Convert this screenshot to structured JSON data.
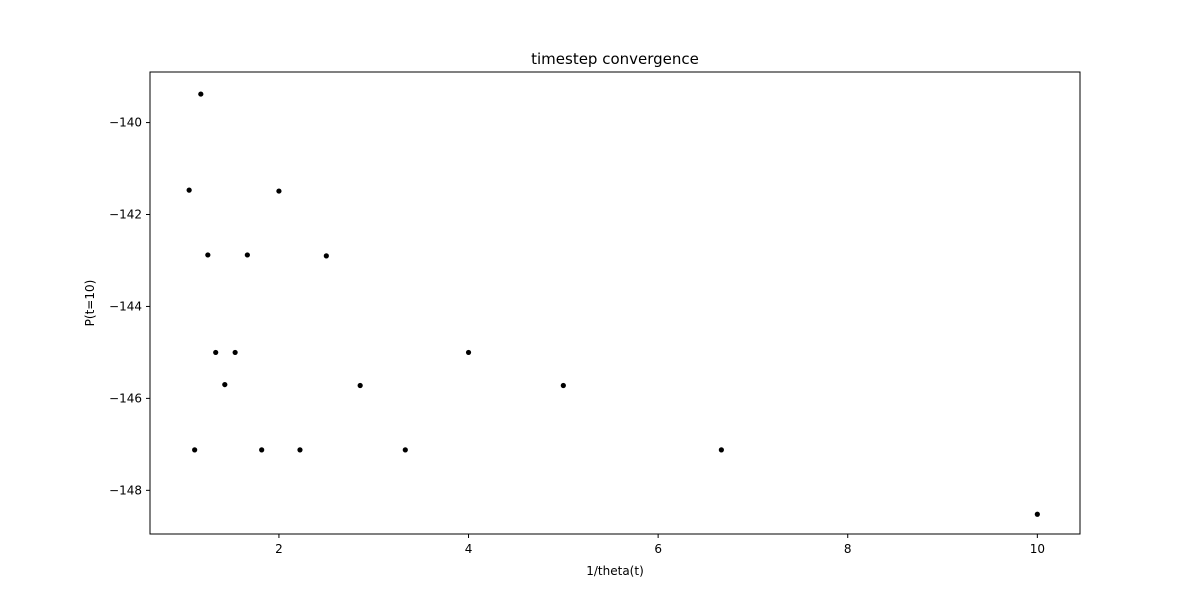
{
  "chart_data": {
    "type": "scatter",
    "title": "timestep convergence",
    "xlabel": "1/theta(t)",
    "ylabel": "P(t=10)",
    "xlim": [
      0.64,
      10.45
    ],
    "ylim": [
      -148.95,
      -138.9
    ],
    "xticks": [
      2,
      4,
      6,
      8,
      10
    ],
    "yticks": [
      -148,
      -146,
      -144,
      -142,
      -140
    ],
    "grid": false,
    "legend": "none",
    "marker_color": "#000000",
    "points": [
      {
        "x": 1.053,
        "y": -141.47
      },
      {
        "x": 1.111,
        "y": -147.12
      },
      {
        "x": 1.176,
        "y": -139.38
      },
      {
        "x": 1.25,
        "y": -142.88
      },
      {
        "x": 1.333,
        "y": -145.0
      },
      {
        "x": 1.429,
        "y": -145.7
      },
      {
        "x": 1.538,
        "y": -145.0
      },
      {
        "x": 1.667,
        "y": -142.88
      },
      {
        "x": 1.818,
        "y": -147.12
      },
      {
        "x": 2.0,
        "y": -141.49
      },
      {
        "x": 2.222,
        "y": -147.12
      },
      {
        "x": 2.5,
        "y": -142.9
      },
      {
        "x": 2.857,
        "y": -145.72
      },
      {
        "x": 3.333,
        "y": -147.12
      },
      {
        "x": 4.0,
        "y": -145.0
      },
      {
        "x": 5.0,
        "y": -145.72
      },
      {
        "x": 6.667,
        "y": -147.12
      },
      {
        "x": 10.0,
        "y": -148.52
      }
    ]
  }
}
